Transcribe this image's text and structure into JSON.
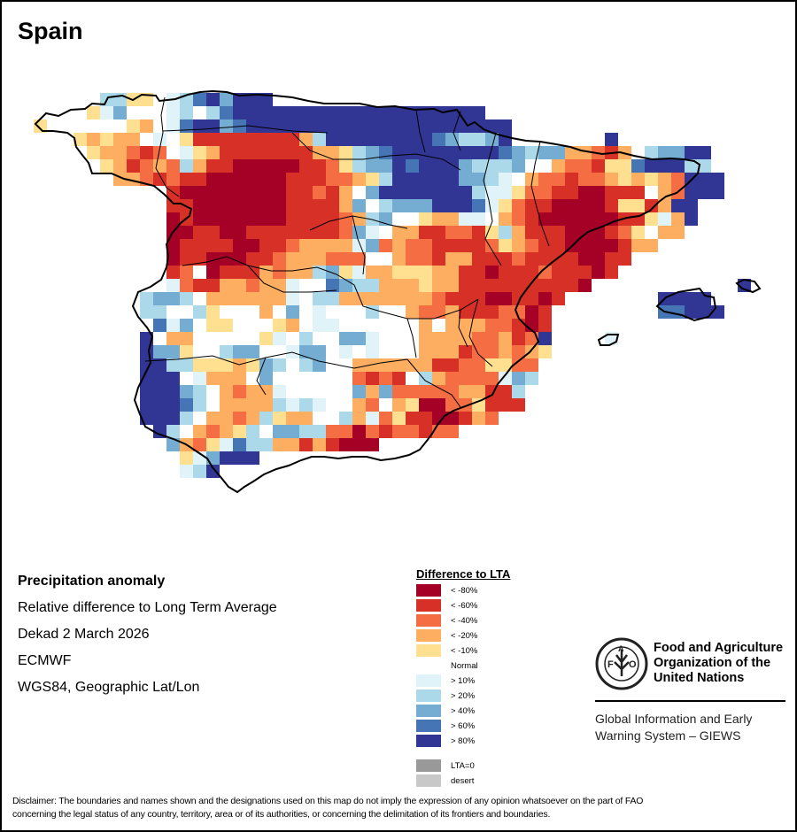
{
  "title": "Spain",
  "info": {
    "heading": "Precipitation anomaly",
    "lines": [
      "Relative difference to Long Term Average",
      "Dekad 2 March 2026",
      "ECMWF",
      "WGS84, Geographic Lat/Lon"
    ]
  },
  "legend": {
    "title": "Difference to LTA",
    "classes": [
      {
        "code": "A",
        "label": "< -80%",
        "color": "#a50026"
      },
      {
        "code": "B",
        "label": "< -60%",
        "color": "#d73027"
      },
      {
        "code": "C",
        "label": "< -40%",
        "color": "#f46d43"
      },
      {
        "code": "D",
        "label": "< -20%",
        "color": "#fdae61"
      },
      {
        "code": "E",
        "label": "< -10%",
        "color": "#fee090"
      },
      {
        "code": "N",
        "label": "Normal",
        "color": "#ffffff"
      },
      {
        "code": "F",
        "label": "> 10%",
        "color": "#e0f3f8"
      },
      {
        "code": "G",
        "label": "> 20%",
        "color": "#abd9e9"
      },
      {
        "code": "H",
        "label": "> 40%",
        "color": "#74add1"
      },
      {
        "code": "I",
        "label": "> 60%",
        "color": "#4575b4"
      },
      {
        "code": "J",
        "label": "> 80%",
        "color": "#313695"
      }
    ],
    "extra": [
      {
        "code": "Z",
        "label": "LTA=0",
        "color": "#999999"
      },
      {
        "code": "Y",
        "label": "desert",
        "color": "#c8c8c8"
      }
    ]
  },
  "organization": {
    "name_lines": [
      "Food and Agriculture",
      "Organization of the",
      "United Nations"
    ],
    "logo_text": "FAO",
    "logo_motto": "FIAT PANIS",
    "system_lines": [
      "Global Information and Early",
      "Warning System – GIEWS"
    ]
  },
  "disclaimer_lines": [
    "Disclaimer: The boundaries and names shown and the designations used on this map do not imply the expression of any opinion whatsoever on the part of FAO",
    "concerning the legal status of any country, territory, area or of its authorities, or concerning the delimitation of its frontiers and boundaries."
  ],
  "map_grid": {
    "description_codes": "A=<-80% B=<-60% C=<-40% D=<-20% E=<-10% N=Normal F=>10% G=>20% H=>40% I=>60% J=>80% .=no data",
    "rows": [
      ".....GGEE.FGIJHJJJ..................................",
      "....EFHNNNFGNGIJJJJJJJJJJJJJJJJJJJ..................",
      "E...NNNEDNFIJJHIJJJJJJJJJJJJJJJJJJJJ................",
      "...EDEDDNFNEBBBBBBBBDGJJJJJJJJIHGGHJ.......J........",
      "...NEDDCBCNFEDBBBBBBBDDEGHIJJJJJJJJIHGHHDDCBDNGHHJJ.",
      "...NNEDBCDCGDBBAAAAABBCEGHHJIJJJHGGGHNNDCCBEEIJJJGG.",
      "......DDCBCBBAAAAAABBBCCDEGJJJJJHHGFNDCCBCCDEDEDCJJJ.",
      "..........BAAAAAAAABBCBDNHJJJJJJJGFFECCBBAABBBNDCJJJ",
      "..........BBAAAAAAABBBBDHNGHHHJJJIFECBBAAAABEEBDJJ..",
      "..........ABAAAAAAABBBBCDGHNNEDDFFNDCBAAAAAABBEFDJ..",
      "..........AABBAABBBBBBBCHFNDDBBCCBEGDBBBAAABCENDD...",
      "..........ABBBBAABBCDDDDFHCDCCBBBBCEDCBBAAAABDD.....",
      "..........ABBAAABBCDDDCCCNNDCCBDDBBBCBBBBAABB.......",
      "..........BCNABBBDCDDGHEFDDEEEDDBBABBBCBBBAB........",
      "..........FCBBDDCDDFNNIHGGDDDEDDBBBBBBBBBA..........",
      "........GHHGNDDDDDDFNGGDDDDDDDCBBBAABBAB............",
      "........GGNNGENNNDNHNFNNNGNNDCCDBBBCCAB.............",
      "........NIFHNEENNNEDNFFNNNNNNDNDDDCCBAB.............",
      "........JNDDNNNNNEFNGNNHHFNNNDDDDCCDBCJ.............",
      "........JHHENNGHHNNFHHNFNFNNNDDDBCCDCDE.............",
      "........JJGGEEEDEHGNGHNNDDDDDDBBCCEECC..............",
      "........JJJNFDDDNHNNNNNNCBCBNGDCCCCFHG..............",
      "........JJJHGNDCDDFNNNNNHDHCCCCCDDBBG...............",
      "........JJJIGNDDDDGFGFNNDCNDEAACCEBBB...............",
      "........JJJGNDDCDGEDDNNGDFCEBBAABDC.................",
      ".........JGNDCDEGNHHGGCCACBCCBCC....................",
      "..........HDCEFIGGDDBDBAAA..........................",
      "...........EFHJJJ...................................",
      "...........FGJ......................................",
      "...................................................."
    ],
    "balearics": {
      "mallorca": [
        "JJJJ.",
        "IIJJJ"
      ],
      "menorca": [
        "J"
      ],
      "ibiza": [
        "F"
      ]
    }
  }
}
